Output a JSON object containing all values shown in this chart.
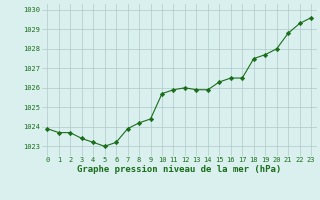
{
  "x": [
    0,
    1,
    2,
    3,
    4,
    5,
    6,
    7,
    8,
    9,
    10,
    11,
    12,
    13,
    14,
    15,
    16,
    17,
    18,
    19,
    20,
    21,
    22,
    23
  ],
  "y": [
    1023.9,
    1023.7,
    1023.7,
    1023.4,
    1023.2,
    1023.0,
    1023.2,
    1023.9,
    1024.2,
    1024.4,
    1025.7,
    1025.9,
    1026.0,
    1025.9,
    1025.9,
    1026.3,
    1026.5,
    1026.5,
    1027.5,
    1027.7,
    1028.0,
    1028.8,
    1029.3,
    1029.6
  ],
  "ylim": [
    1022.5,
    1030.3
  ],
  "yticks": [
    1023,
    1024,
    1025,
    1026,
    1027,
    1028,
    1029,
    1030
  ],
  "xticks": [
    0,
    1,
    2,
    3,
    4,
    5,
    6,
    7,
    8,
    9,
    10,
    11,
    12,
    13,
    14,
    15,
    16,
    17,
    18,
    19,
    20,
    21,
    22,
    23
  ],
  "line_color": "#1a6e1a",
  "marker": "D",
  "marker_size": 2.2,
  "bg_color": "#d9f0ef",
  "grid_color": "#b0c8c8",
  "xlabel": "Graphe pression niveau de la mer (hPa)",
  "xlabel_color": "#1a6e1a",
  "tick_color": "#1a6e1a",
  "tick_fontsize": 5.0,
  "label_fontsize": 6.5
}
